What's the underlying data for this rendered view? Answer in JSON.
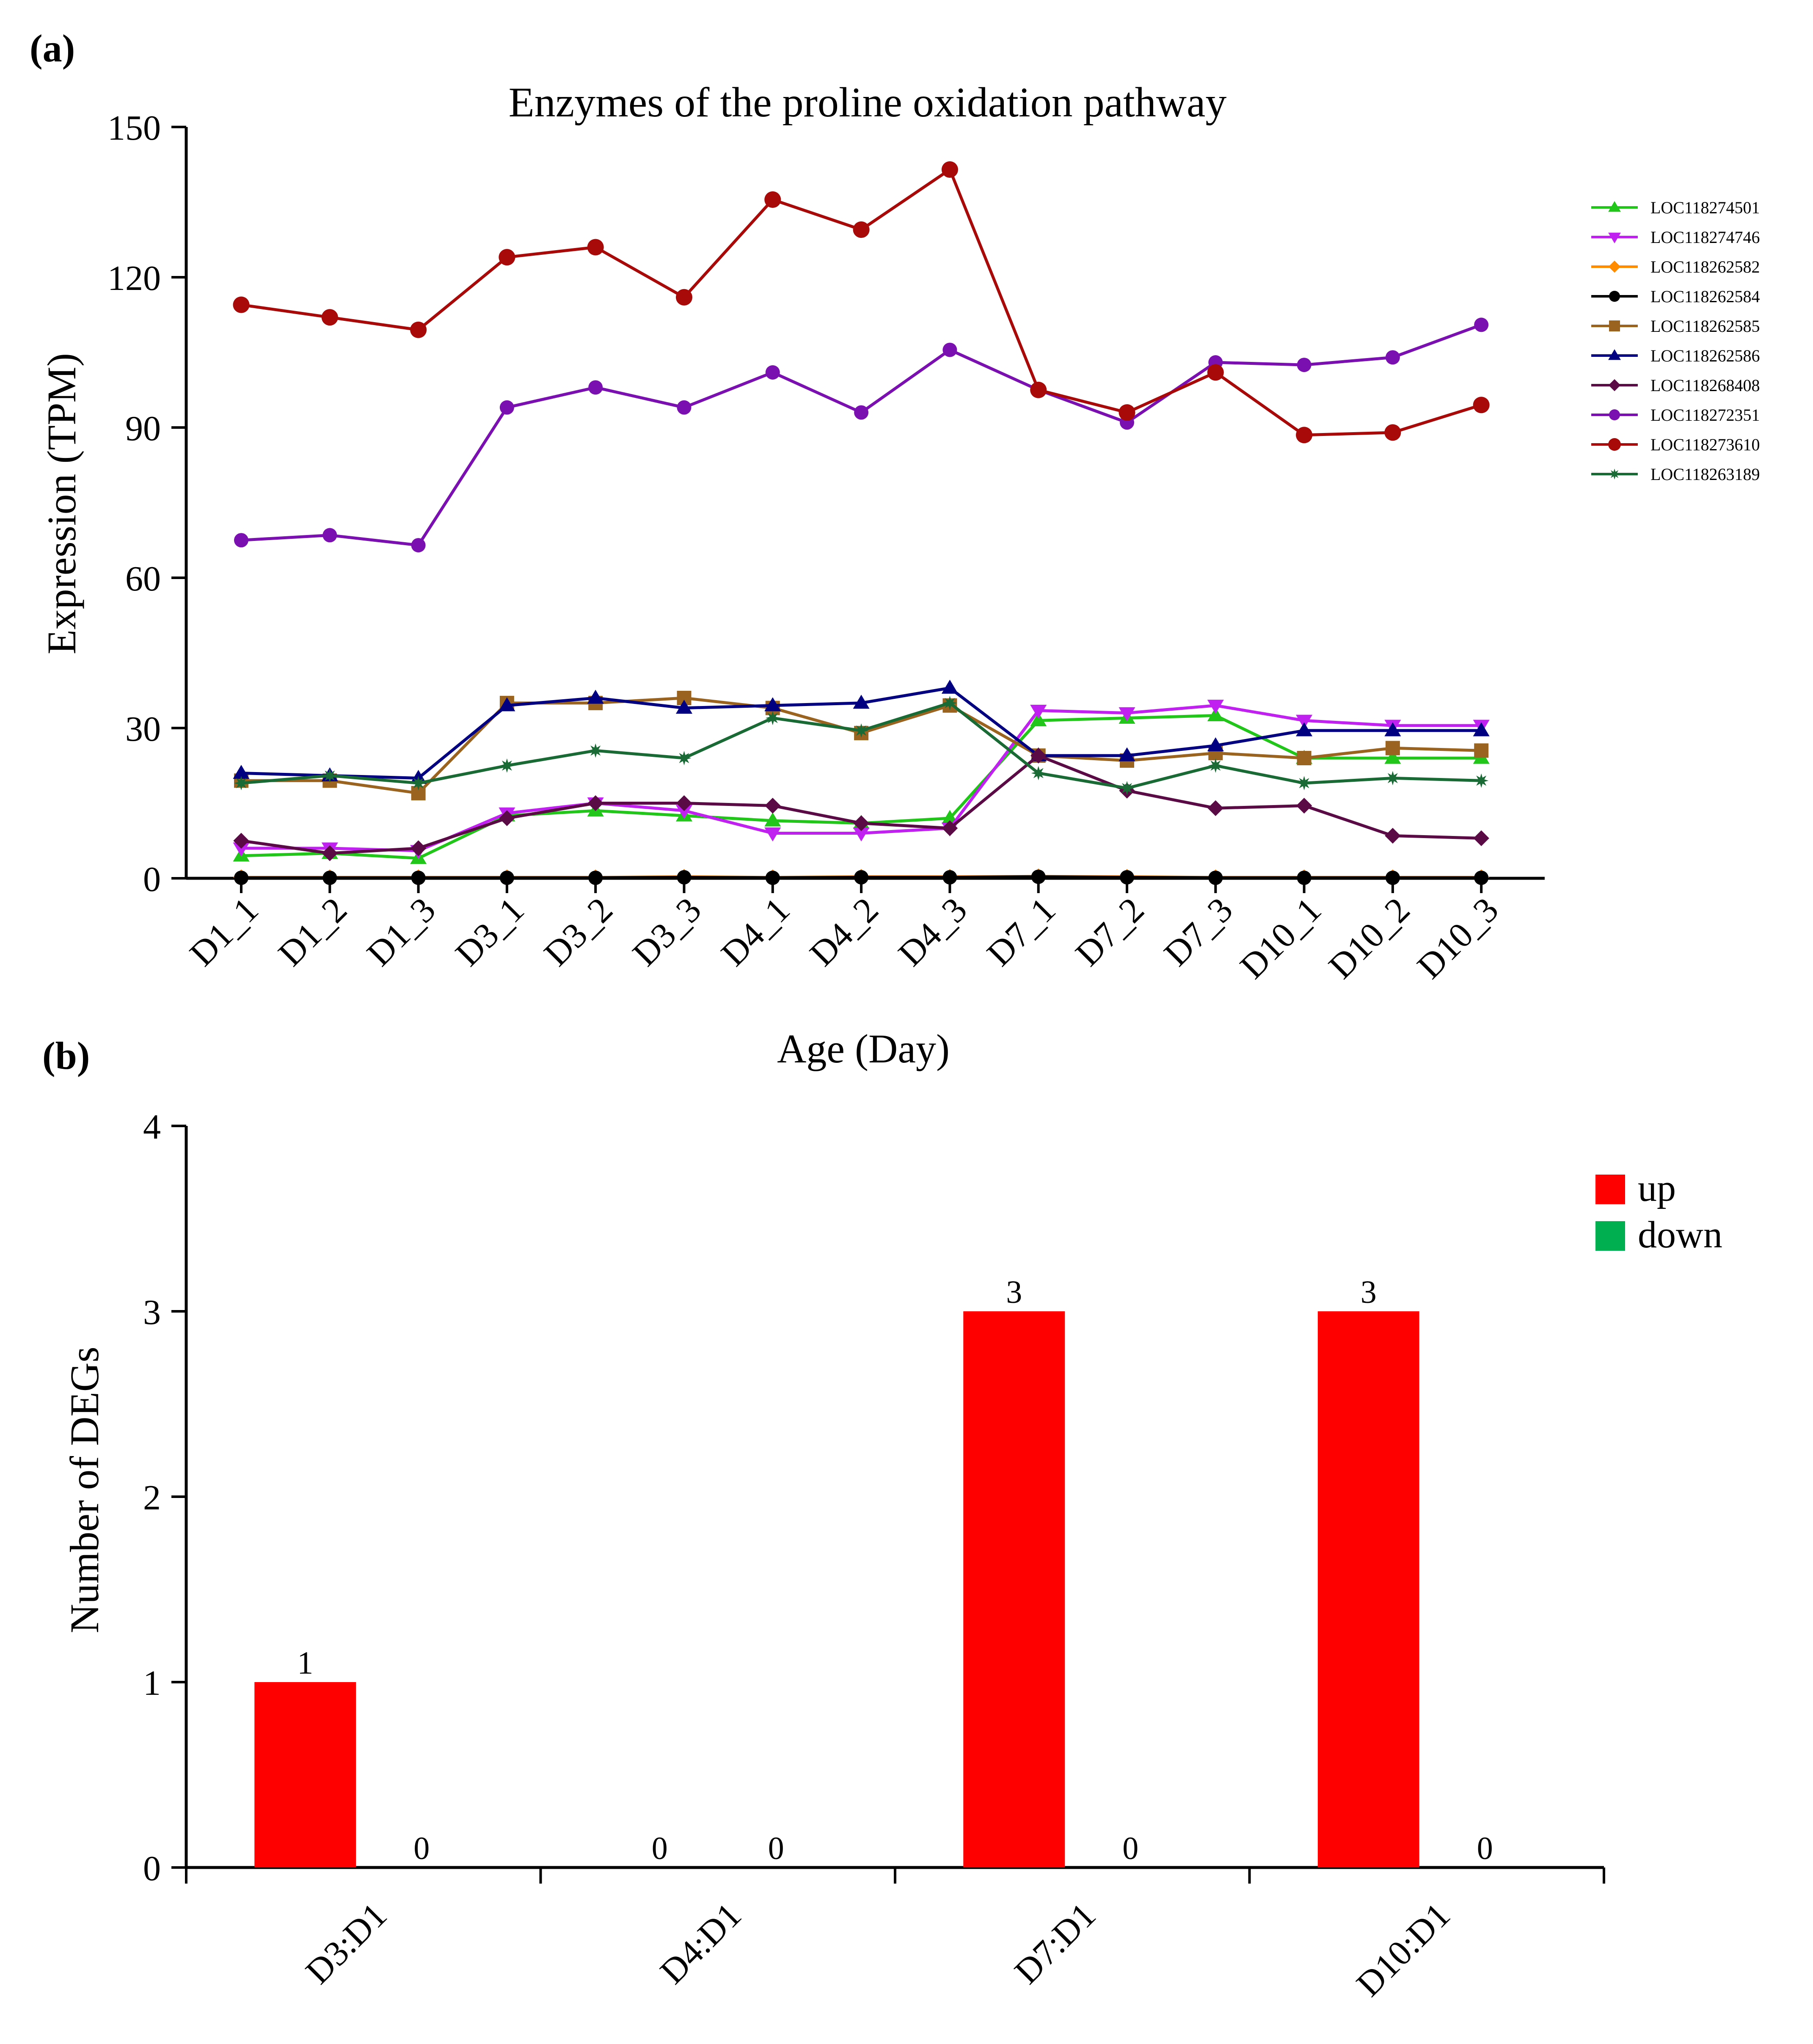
{
  "chart_data": [
    {
      "type": "line",
      "panel_label": "(a)",
      "title": "Enzymes of the proline oxidation pathway",
      "xlabel": "Age (Day)",
      "ylabel": "Expression (TPM)",
      "ylim": [
        0,
        150
      ],
      "yticks": [
        "0",
        "30",
        "60",
        "90",
        "120",
        "150"
      ],
      "legend_position": "right",
      "categories": [
        "D1_1",
        "D1_2",
        "D1_3",
        "D3_1",
        "D3_2",
        "D3_3",
        "D4_1",
        "D4_2",
        "D4_3",
        "D7_1",
        "D7_2",
        "D7_3",
        "D10_1",
        "D10_2",
        "D10_3"
      ],
      "series": [
        {
          "name": "LOC118274501",
          "color": "#22c51a",
          "marker": "triangle-up",
          "values": [
            4.5,
            5,
            4,
            12.5,
            13.5,
            12.5,
            11.5,
            11,
            12,
            31.5,
            32,
            32.5,
            24,
            24,
            24
          ]
        },
        {
          "name": "LOC118274746",
          "color": "#c020f0",
          "marker": "triangle-down",
          "values": [
            6,
            6,
            5.5,
            13,
            15,
            13.5,
            9,
            9,
            10,
            33.5,
            33,
            34.5,
            31.5,
            30.5,
            30.5
          ]
        },
        {
          "name": "LOC118262582",
          "color": "#ff8c00",
          "marker": "diamond",
          "values": [
            0.2,
            0.2,
            0.2,
            0.2,
            0.2,
            0.3,
            0.2,
            0.3,
            0.3,
            0.4,
            0.3,
            0.2,
            0.2,
            0.2,
            0.2
          ]
        },
        {
          "name": "LOC118262584",
          "color": "#000000",
          "marker": "circle",
          "values": [
            0.1,
            0.1,
            0.1,
            0.1,
            0.1,
            0.2,
            0.1,
            0.2,
            0.2,
            0.3,
            0.2,
            0.1,
            0.1,
            0.1,
            0.1
          ]
        },
        {
          "name": "LOC118262585",
          "color": "#9a6420",
          "marker": "square",
          "values": [
            19.5,
            19.5,
            17,
            35,
            35,
            36,
            34,
            29,
            34.5,
            24.5,
            23.5,
            25,
            24,
            26,
            25.5
          ]
        },
        {
          "name": "LOC118262586",
          "color": "#000080",
          "marker": "triangle-up",
          "values": [
            21,
            20.5,
            20,
            34.5,
            36,
            34,
            34.5,
            35,
            38,
            24.5,
            24.5,
            26.5,
            29.5,
            29.5,
            29.5
          ]
        },
        {
          "name": "LOC118268408",
          "color": "#5a0a45",
          "marker": "diamond",
          "values": [
            7.5,
            5,
            6,
            12,
            15,
            15,
            14.5,
            11,
            10,
            24.5,
            17.5,
            14,
            14.5,
            8.5,
            8
          ]
        },
        {
          "name": "LOC118272351",
          "color": "#7a10b0",
          "marker": "circle",
          "values": [
            67.5,
            68.5,
            66.5,
            94,
            98,
            94,
            101,
            93,
            105.5,
            97.5,
            91,
            103,
            102.5,
            104,
            110.5
          ]
        },
        {
          "name": "LOC118273610",
          "color": "#a80a0a",
          "marker": "circle-big",
          "values": [
            114.5,
            112,
            109.5,
            124,
            126,
            116,
            135.5,
            129.5,
            141.5,
            97.5,
            93,
            101,
            88.5,
            89,
            94.5
          ]
        },
        {
          "name": "LOC118263189",
          "color": "#1a6a35",
          "marker": "star",
          "values": [
            19,
            20.5,
            19,
            22.5,
            25.5,
            24,
            32,
            29.5,
            35,
            21,
            18,
            22.5,
            19,
            20,
            19.5
          ]
        }
      ]
    },
    {
      "type": "bar",
      "panel_label": "(b)",
      "title": "",
      "xlabel": "",
      "ylabel": "Number of DEGs",
      "ylim": [
        0,
        4
      ],
      "yticks": [
        "0",
        "1",
        "2",
        "3",
        "4"
      ],
      "legend_position": "top-right",
      "categories": [
        "D3:D1",
        "D4:D1",
        "D7:D1",
        "D10:D1"
      ],
      "series": [
        {
          "name": "up",
          "color": "#ff0000",
          "values": [
            1,
            0,
            3,
            3
          ],
          "labels": [
            "1",
            "0",
            "3",
            "3"
          ]
        },
        {
          "name": "down",
          "color": "#00b050",
          "values": [
            0,
            0,
            0,
            0
          ],
          "labels": [
            "0",
            "0",
            "0",
            "0"
          ]
        }
      ]
    }
  ]
}
